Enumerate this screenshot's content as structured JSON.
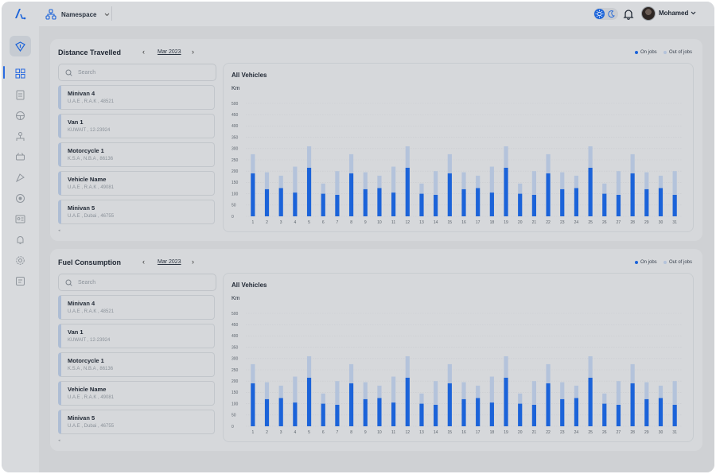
{
  "header": {
    "namespace_label": "Namespace",
    "user_name": "Mohamed"
  },
  "colors": {
    "on_jobs": "#1b63d9",
    "out_of_jobs": "#b4c3db",
    "accent": "#2a6be0"
  },
  "legend": {
    "on_jobs": "On jobs",
    "out_of_jobs": "Out of jobs"
  },
  "sidebar": {
    "icons": [
      "route-icon",
      "dashboard-icon",
      "report-icon",
      "tracking-icon",
      "organization-icon",
      "vehicle-icon",
      "map-icon",
      "location-icon",
      "id-card-icon",
      "alerts-icon",
      "settings-icon",
      "notes-icon"
    ]
  },
  "vehicles": [
    {
      "name": "Minivan 4",
      "sub": "U.A.E , R.A.K , 48521"
    },
    {
      "name": "Van 1",
      "sub": "KUWAIT , 12-23924"
    },
    {
      "name": "Motorcycle 1",
      "sub": "K.S.A , N.B.A , 86136"
    },
    {
      "name": "Vehicle Name",
      "sub": "U.A.E , R.A.K , 49081"
    },
    {
      "name": "Minivan 5",
      "sub": "U.A.E , Dubai , 46755"
    }
  ],
  "sections": [
    {
      "title": "Distance Travelled",
      "month": "Mar 2023",
      "search_placeholder": "Search",
      "chart_title": "All Vehicles",
      "unit": "Km"
    },
    {
      "title": "Fuel Consumption",
      "month": "Mar 2023",
      "search_placeholder": "Search",
      "chart_title": "All Vehicles",
      "unit": "Km"
    }
  ],
  "chart_data": [
    {
      "type": "bar",
      "stacked": true,
      "title": "All Vehicles",
      "ylabel": "Km",
      "ylim": [
        0,
        500
      ],
      "yticks": [
        0,
        50,
        100,
        150,
        200,
        250,
        300,
        350,
        400,
        450,
        500
      ],
      "categories": [
        "1",
        "2",
        "3",
        "4",
        "5",
        "6",
        "7",
        "8",
        "9",
        "10",
        "11",
        "12",
        "13",
        "14",
        "15",
        "16",
        "17",
        "18",
        "19",
        "20",
        "21",
        "22",
        "23",
        "24",
        "25",
        "26",
        "27",
        "28",
        "29",
        "30",
        "31"
      ],
      "series": [
        {
          "name": "On jobs",
          "values": [
            190,
            120,
            125,
            105,
            215,
            100,
            95,
            190,
            120,
            125,
            105,
            215,
            100,
            95,
            190,
            120,
            125,
            105,
            215,
            100,
            95,
            190,
            120,
            125,
            215,
            100,
            95,
            190,
            120,
            125,
            95
          ]
        },
        {
          "name": "Out of jobs",
          "values": [
            85,
            75,
            55,
            115,
            95,
            45,
            105,
            85,
            75,
            55,
            115,
            95,
            45,
            105,
            85,
            75,
            55,
            115,
            95,
            45,
            105,
            85,
            75,
            55,
            95,
            45,
            105,
            85,
            75,
            55,
            105
          ]
        }
      ]
    },
    {
      "type": "bar",
      "stacked": true,
      "title": "All Vehicles",
      "ylabel": "Km",
      "ylim": [
        0,
        500
      ],
      "yticks": [
        0,
        50,
        100,
        150,
        200,
        250,
        300,
        350,
        400,
        450,
        500
      ],
      "categories": [
        "1",
        "2",
        "3",
        "4",
        "5",
        "6",
        "7",
        "8",
        "9",
        "10",
        "11",
        "12",
        "13",
        "14",
        "15",
        "16",
        "17",
        "18",
        "19",
        "20",
        "21",
        "22",
        "23",
        "24",
        "25",
        "26",
        "27",
        "28",
        "29",
        "30",
        "31"
      ],
      "series": [
        {
          "name": "On jobs",
          "values": [
            190,
            120,
            125,
            105,
            215,
            100,
            95,
            190,
            120,
            125,
            105,
            215,
            100,
            95,
            190,
            120,
            125,
            105,
            215,
            100,
            95,
            190,
            120,
            125,
            215,
            100,
            95,
            190,
            120,
            125,
            95
          ]
        },
        {
          "name": "Out of jobs",
          "values": [
            85,
            75,
            55,
            115,
            95,
            45,
            105,
            85,
            75,
            55,
            115,
            95,
            45,
            105,
            85,
            75,
            55,
            115,
            95,
            45,
            105,
            85,
            75,
            55,
            95,
            45,
            105,
            85,
            75,
            55,
            105
          ]
        }
      ]
    }
  ]
}
